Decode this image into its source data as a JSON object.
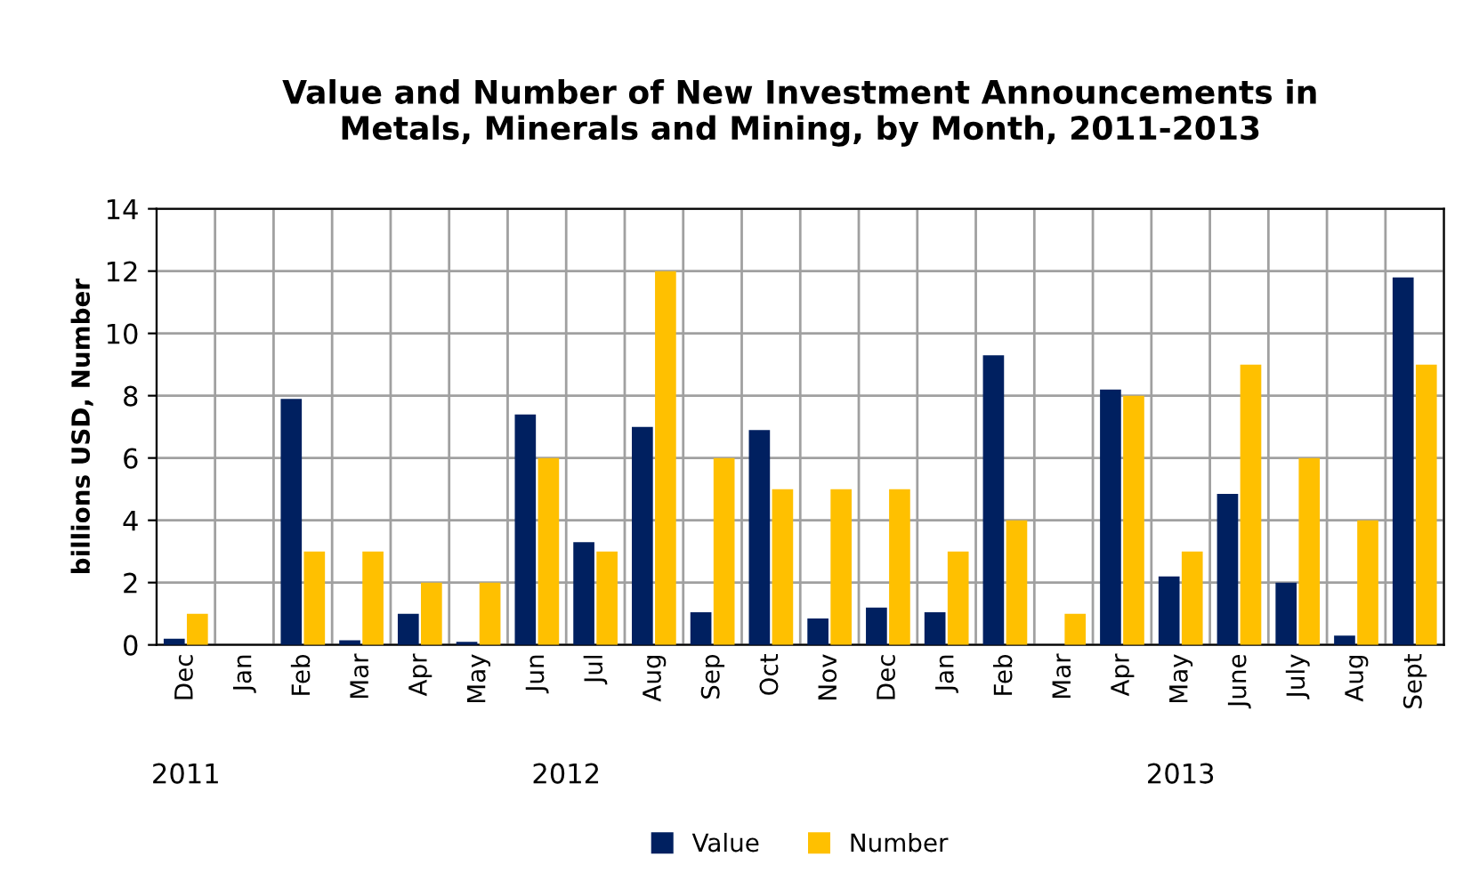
{
  "chart_data": {
    "type": "bar",
    "title": "Value and Number of New Investment Announcements in\nMetals, Minerals and Mining, by Month, 2011-2013",
    "ylabel": "billions USD, Number",
    "categories": [
      "Dec",
      "Jan",
      "Feb",
      "Mar",
      "Apr",
      "May",
      "Jun",
      "Jul",
      "Aug",
      "Sep",
      "Oct",
      "Nov",
      "Dec",
      "Jan",
      "Feb",
      "Mar",
      "Apr",
      "May",
      "June",
      "July",
      "Aug",
      "Sept"
    ],
    "series": [
      {
        "name": "Value",
        "color": "#002060",
        "values": [
          0.2,
          0,
          7.9,
          0.15,
          1.0,
          0.1,
          7.4,
          3.3,
          7.0,
          1.05,
          6.9,
          0.85,
          1.2,
          1.05,
          9.3,
          0,
          8.2,
          2.2,
          4.85,
          2.0,
          0.3,
          11.8
        ]
      },
      {
        "name": "Number",
        "color": "#ffc000",
        "values": [
          1,
          0,
          3,
          3,
          2,
          2,
          6,
          3,
          12,
          6,
          5,
          5,
          5,
          3,
          4,
          1,
          8,
          3,
          9,
          6,
          4,
          9
        ]
      }
    ],
    "annotations": [
      "2011",
      "2012",
      "2013"
    ],
    "ylim": [
      0,
      14
    ],
    "yticks": [
      0,
      2,
      4,
      6,
      8,
      10,
      12,
      14
    ],
    "grid": true,
    "legend": "bottom"
  }
}
